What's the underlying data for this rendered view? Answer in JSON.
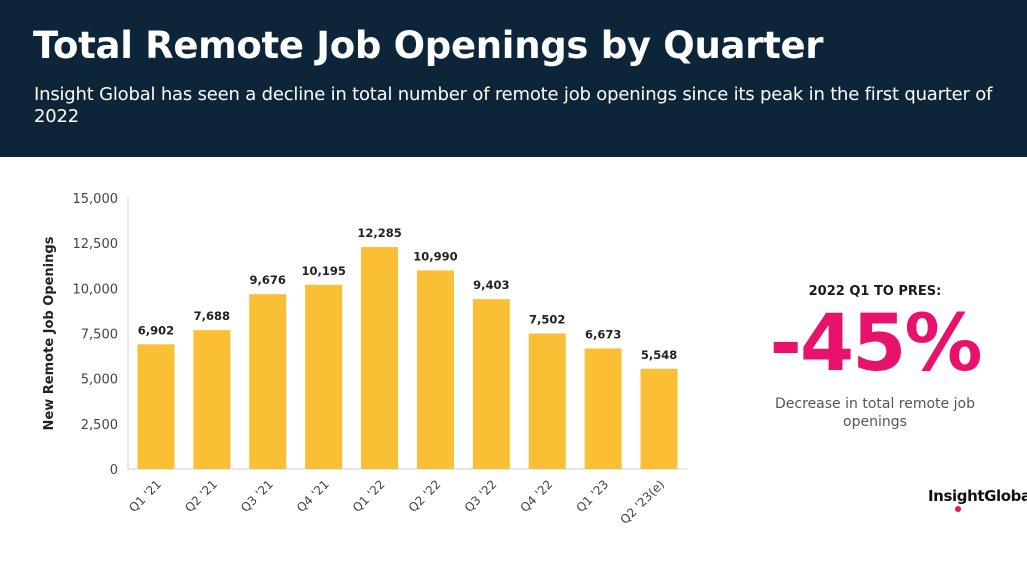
{
  "header": {
    "title": "Total Remote Job Openings by Quarter",
    "subtitle": "Insight Global has seen a decline in total number of remote job openings since its peak in the first quarter of 2022"
  },
  "callout": {
    "label": "2022 Q1 TO PRES:",
    "value": "-45%",
    "description": "Decrease in total remote job openings"
  },
  "logo": {
    "text": "InsightGlobal"
  },
  "colors": {
    "header_bg": "#0c2538",
    "bar": "#fbbf35",
    "accent": "#e8116b"
  },
  "chart_data": {
    "type": "bar",
    "title": "",
    "xlabel": "",
    "ylabel": "New Remote Job Openings",
    "categories": [
      "Q1 '21",
      "Q2 '21",
      "Q3 '21",
      "Q4 '21",
      "Q1 '22",
      "Q2 '22",
      "Q3 '22",
      "Q4 '22",
      "Q1 '23",
      "Q2 '23(e)"
    ],
    "values": [
      6902,
      7688,
      9676,
      10195,
      12285,
      10990,
      9403,
      7502,
      6673,
      5548
    ],
    "value_labels": [
      "6,902",
      "7,688",
      "9,676",
      "10,195",
      "12,285",
      "10,990",
      "9,403",
      "7,502",
      "6,673",
      "5,548"
    ],
    "ylim": [
      0,
      15000
    ],
    "yticks": [
      0,
      2500,
      5000,
      7500,
      10000,
      12500,
      15000
    ],
    "ytick_labels": [
      "0",
      "2,500",
      "5,000",
      "7,500",
      "10,000",
      "12,500",
      "15,000"
    ],
    "grid": false,
    "legend": "none"
  }
}
